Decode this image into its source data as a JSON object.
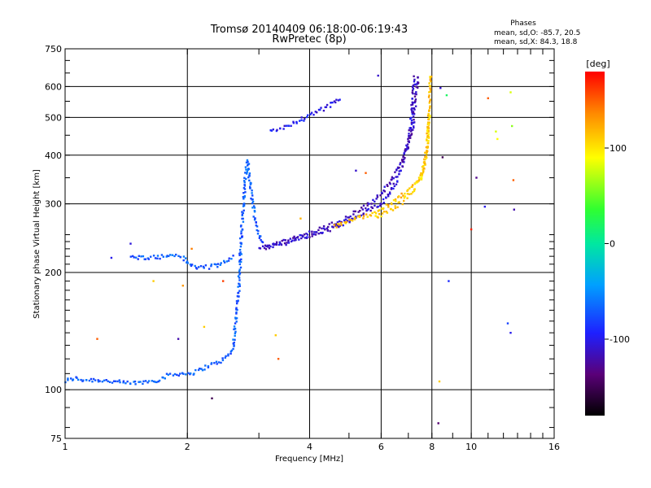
{
  "chart_data": {
    "type": "scatter",
    "title": "Tromsø 20140409 06:18:00-06:19:43",
    "subtitle": "RwPretec (8p)",
    "stats": {
      "heading": "Phases",
      "line_o": "mean, sd,O: -85.7, 20.5",
      "line_x": "mean, sd,X:  84.3, 18.8"
    },
    "xlabel": "Frequency [MHz]",
    "ylabel": "Stationary phase Virtual Height [km]",
    "x_scale": "log",
    "y_scale": "log",
    "xlim": [
      1,
      16
    ],
    "ylim": [
      75,
      750
    ],
    "x_ticks": [
      1,
      2,
      4,
      6,
      8,
      10,
      16
    ],
    "x_tick_labels": [
      "1",
      "2",
      "4",
      "6",
      "8",
      "10",
      "16"
    ],
    "y_ticks": [
      75,
      100,
      200,
      300,
      400,
      500,
      600,
      750
    ],
    "y_tick_labels": [
      "75",
      "100",
      "200",
      "300",
      "400",
      "500",
      "600",
      "750"
    ],
    "grid": true,
    "colorbar": {
      "label": "[deg]",
      "range": [
        -180,
        180
      ],
      "ticks": [
        100,
        0,
        -100
      ],
      "tick_labels": [
        "100",
        "0",
        "-100"
      ]
    },
    "traces": [
      {
        "phase": -70,
        "points": [
          [
            1.0,
            105
          ],
          [
            1.05,
            107
          ],
          [
            1.1,
            106
          ],
          [
            1.2,
            106
          ],
          [
            1.3,
            105
          ],
          [
            1.4,
            104
          ],
          [
            1.5,
            104
          ],
          [
            1.6,
            105
          ],
          [
            1.7,
            106
          ],
          [
            1.8,
            109
          ],
          [
            1.9,
            110
          ],
          [
            2.0,
            110
          ],
          [
            2.1,
            111
          ],
          [
            2.2,
            114
          ],
          [
            2.3,
            116
          ],
          [
            2.4,
            118
          ],
          [
            2.5,
            121
          ],
          [
            2.55,
            124
          ],
          [
            2.6,
            130
          ],
          [
            2.62,
            145
          ],
          [
            2.65,
            160
          ],
          [
            2.68,
            185
          ],
          [
            2.7,
            215
          ],
          [
            2.72,
            255
          ],
          [
            2.75,
            300
          ],
          [
            2.77,
            340
          ],
          [
            2.8,
            375
          ],
          [
            2.82,
            390
          ]
        ]
      },
      {
        "phase": -70,
        "points": [
          [
            2.82,
            380
          ],
          [
            2.85,
            340
          ],
          [
            2.9,
            300
          ],
          [
            2.95,
            270
          ],
          [
            3.0,
            250
          ],
          [
            3.05,
            240
          ],
          [
            3.1,
            236
          ]
        ]
      },
      {
        "phase": -70,
        "points": [
          [
            1.45,
            218
          ],
          [
            1.6,
            219
          ],
          [
            1.7,
            219
          ],
          [
            1.9,
            222
          ],
          [
            1.95,
            218
          ],
          [
            2.0,
            212
          ],
          [
            2.1,
            206
          ],
          [
            2.3,
            207
          ],
          [
            2.5,
            213
          ],
          [
            2.6,
            222
          ]
        ]
      },
      {
        "phase": -110,
        "points": [
          [
            3.1,
            232
          ],
          [
            3.3,
            235
          ],
          [
            3.6,
            240
          ],
          [
            4.0,
            248
          ],
          [
            4.5,
            258
          ],
          [
            5.0,
            270
          ],
          [
            5.5,
            285
          ],
          [
            6.0,
            300
          ],
          [
            6.3,
            320
          ],
          [
            6.6,
            350
          ],
          [
            6.8,
            385
          ],
          [
            7.0,
            430
          ],
          [
            7.1,
            480
          ],
          [
            7.15,
            530
          ],
          [
            7.2,
            580
          ],
          [
            7.25,
            640
          ]
        ]
      },
      {
        "phase": -115,
        "points": [
          [
            3.0,
            230
          ],
          [
            3.3,
            236
          ],
          [
            3.7,
            245
          ],
          [
            4.2,
            257
          ],
          [
            4.8,
            272
          ],
          [
            5.4,
            292
          ],
          [
            6.0,
            318
          ],
          [
            6.5,
            355
          ],
          [
            6.9,
            410
          ],
          [
            7.2,
            480
          ],
          [
            7.3,
            560
          ],
          [
            7.4,
            640
          ]
        ]
      },
      {
        "phase": 115,
        "points": [
          [
            4.6,
            262
          ],
          [
            5.0,
            272
          ],
          [
            5.5,
            280
          ],
          [
            6.0,
            290
          ],
          [
            6.5,
            305
          ],
          [
            7.0,
            325
          ],
          [
            7.4,
            345
          ],
          [
            7.6,
            365
          ],
          [
            7.7,
            390
          ],
          [
            7.8,
            430
          ],
          [
            7.85,
            480
          ],
          [
            7.9,
            540
          ],
          [
            7.92,
            600
          ],
          [
            7.95,
            650
          ]
        ]
      },
      {
        "phase": 108,
        "points": [
          [
            5.8,
            276
          ],
          [
            6.3,
            288
          ],
          [
            6.8,
            305
          ],
          [
            7.2,
            325
          ],
          [
            7.5,
            350
          ],
          [
            7.7,
            385
          ],
          [
            7.8,
            420
          ],
          [
            7.85,
            470
          ],
          [
            7.9,
            520
          ]
        ]
      },
      {
        "phase": -100,
        "points": [
          [
            3.2,
            460
          ],
          [
            3.4,
            470
          ],
          [
            3.6,
            480
          ],
          [
            3.8,
            492
          ],
          [
            4.0,
            505
          ],
          [
            4.2,
            518
          ],
          [
            4.4,
            530
          ],
          [
            4.6,
            545
          ],
          [
            4.8,
            565
          ]
        ]
      }
    ],
    "scatter": [
      {
        "x": 1.45,
        "y": 237,
        "phase": -105
      },
      {
        "x": 1.3,
        "y": 218,
        "phase": -100
      },
      {
        "x": 1.2,
        "y": 135,
        "phase": 150
      },
      {
        "x": 1.65,
        "y": 190,
        "phase": 110
      },
      {
        "x": 1.9,
        "y": 135,
        "phase": -120
      },
      {
        "x": 1.95,
        "y": 185,
        "phase": 130
      },
      {
        "x": 2.05,
        "y": 230,
        "phase": 140
      },
      {
        "x": 2.2,
        "y": 145,
        "phase": 110
      },
      {
        "x": 2.3,
        "y": 95,
        "phase": -150
      },
      {
        "x": 2.45,
        "y": 190,
        "phase": 160
      },
      {
        "x": 3.3,
        "y": 138,
        "phase": 110
      },
      {
        "x": 3.35,
        "y": 120,
        "phase": 150
      },
      {
        "x": 3.8,
        "y": 275,
        "phase": 120
      },
      {
        "x": 5.2,
        "y": 365,
        "phase": -110
      },
      {
        "x": 5.5,
        "y": 360,
        "phase": 150
      },
      {
        "x": 5.9,
        "y": 640,
        "phase": -110
      },
      {
        "x": 8.3,
        "y": 82,
        "phase": -140
      },
      {
        "x": 8.35,
        "y": 105,
        "phase": 110
      },
      {
        "x": 8.4,
        "y": 595,
        "phase": -110
      },
      {
        "x": 8.5,
        "y": 395,
        "phase": -150
      },
      {
        "x": 8.7,
        "y": 570,
        "phase": 20
      },
      {
        "x": 8.8,
        "y": 190,
        "phase": -90
      },
      {
        "x": 10.0,
        "y": 258,
        "phase": 170
      },
      {
        "x": 10.3,
        "y": 350,
        "phase": -130
      },
      {
        "x": 10.8,
        "y": 295,
        "phase": -100
      },
      {
        "x": 11.0,
        "y": 560,
        "phase": 150
      },
      {
        "x": 11.5,
        "y": 460,
        "phase": 80
      },
      {
        "x": 11.6,
        "y": 440,
        "phase": 90
      },
      {
        "x": 12.5,
        "y": 580,
        "phase": 80
      },
      {
        "x": 12.6,
        "y": 475,
        "phase": 60
      },
      {
        "x": 12.7,
        "y": 345,
        "phase": 150
      },
      {
        "x": 12.75,
        "y": 290,
        "phase": -120
      },
      {
        "x": 12.3,
        "y": 148,
        "phase": -80
      },
      {
        "x": 12.5,
        "y": 140,
        "phase": -100
      }
    ]
  }
}
